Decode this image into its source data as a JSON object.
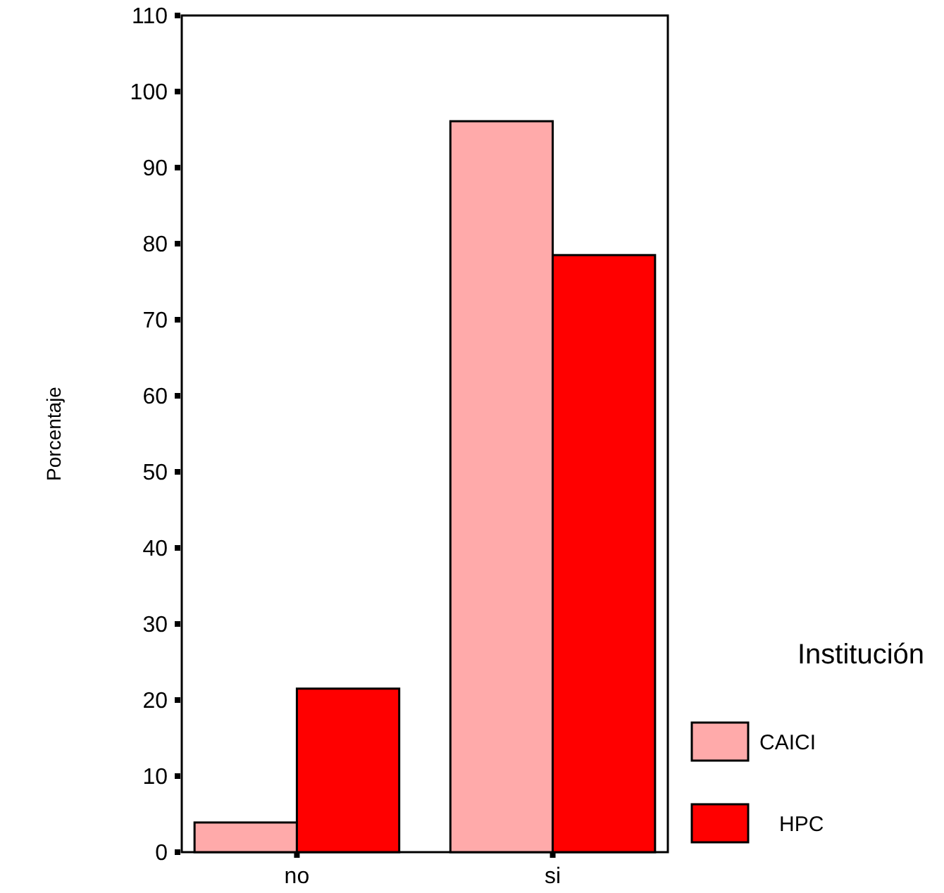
{
  "chart_data": {
    "type": "bar",
    "ylabel": "Porcentaje",
    "legend_title": "Institución",
    "categories": [
      "no",
      "si"
    ],
    "series": [
      {
        "name": "CAICI",
        "color": "#ffaaaa",
        "values": [
          3.9,
          96.1
        ]
      },
      {
        "name": "HPC",
        "color": "#ff0000",
        "values": [
          21.5,
          78.5
        ]
      }
    ],
    "ylim": [
      0,
      110
    ],
    "yticks": [
      0,
      10,
      20,
      30,
      40,
      50,
      60,
      70,
      80,
      90,
      100,
      110
    ],
    "legend": "right"
  }
}
